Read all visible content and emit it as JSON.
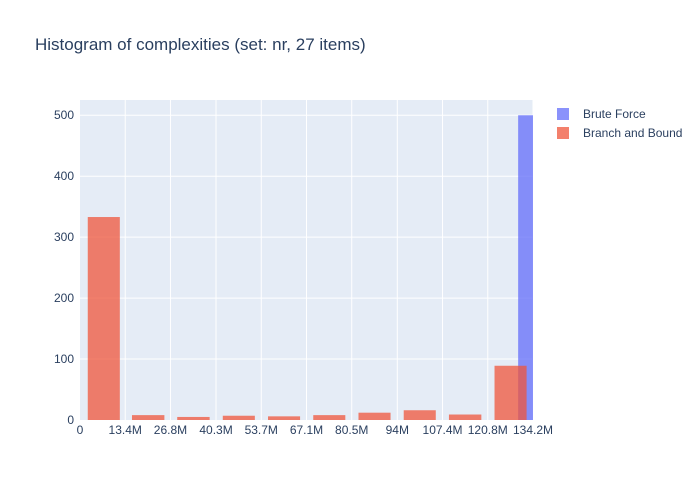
{
  "chart_data": {
    "type": "bar",
    "title": "Histogram of complexities (set: nr, 27 items)",
    "xlabel": "",
    "ylabel": "",
    "x_tick_labels": [
      "0",
      "13.4M",
      "26.8M",
      "40.3M",
      "53.7M",
      "67.1M",
      "80.5M",
      "94M",
      "107.4M",
      "120.8M",
      "134.2M"
    ],
    "x_tick_values": [
      0,
      13.4,
      26.8,
      40.3,
      53.7,
      67.1,
      80.5,
      94,
      107.4,
      120.8,
      134.2
    ],
    "x_unit": "M",
    "y_ticks": [
      0,
      100,
      200,
      300,
      400,
      500
    ],
    "xlim": [
      0,
      134.2
    ],
    "ylim": [
      0,
      525
    ],
    "grid": true,
    "legend_position": "top-right",
    "series": [
      {
        "name": "Brute Force",
        "color": "#636efa",
        "opacity": 0.75,
        "bins": [
          {
            "x0": 129.8,
            "x1": 134.2,
            "count": 500
          }
        ]
      },
      {
        "name": "Branch and Bound",
        "color": "#ef553b",
        "opacity": 0.75,
        "bins": [
          {
            "x0": 2.3,
            "x1": 11.8,
            "count": 333
          },
          {
            "x0": 15.4,
            "x1": 25.0,
            "count": 8
          },
          {
            "x0": 28.8,
            "x1": 38.4,
            "count": 5
          },
          {
            "x0": 42.3,
            "x1": 51.8,
            "count": 7
          },
          {
            "x0": 55.7,
            "x1": 65.2,
            "count": 6
          },
          {
            "x0": 69.1,
            "x1": 78.6,
            "count": 8
          },
          {
            "x0": 82.5,
            "x1": 92.0,
            "count": 12
          },
          {
            "x0": 95.9,
            "x1": 105.4,
            "count": 16
          },
          {
            "x0": 109.3,
            "x1": 118.9,
            "count": 9
          },
          {
            "x0": 122.8,
            "x1": 132.3,
            "count": 89
          }
        ]
      }
    ]
  },
  "colors": {
    "plot_background": "#e5ecf6",
    "grid": "#ffffff",
    "text": "#2a3f5f"
  }
}
